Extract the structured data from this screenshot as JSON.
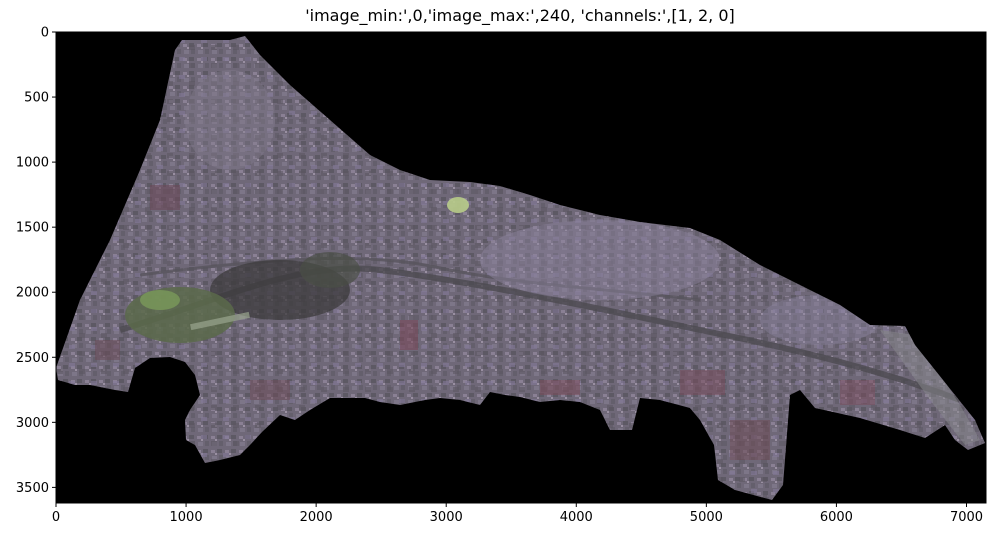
{
  "figure": {
    "title": "'image_min:',0,'image_max:',240, 'channels:',[1, 2, 0]"
  },
  "image": {
    "description_name": "satellite-image",
    "background_color": "#000000",
    "land_palette": [
      "#6f6878",
      "#7a7286",
      "#5c5a60",
      "#8a7f92",
      "#54504f"
    ]
  },
  "axes": {
    "x_ticks": [
      {
        "value": 0,
        "label": "0"
      },
      {
        "value": 1000,
        "label": "1000"
      },
      {
        "value": 2000,
        "label": "2000"
      },
      {
        "value": 3000,
        "label": "3000"
      },
      {
        "value": 4000,
        "label": "4000"
      },
      {
        "value": 5000,
        "label": "5000"
      },
      {
        "value": 6000,
        "label": "6000"
      },
      {
        "value": 7000,
        "label": "7000"
      }
    ],
    "y_ticks": [
      {
        "value": 0,
        "label": "0"
      },
      {
        "value": 500,
        "label": "500"
      },
      {
        "value": 1000,
        "label": "1000"
      },
      {
        "value": 1500,
        "label": "1500"
      },
      {
        "value": 2000,
        "label": "2000"
      },
      {
        "value": 2500,
        "label": "2500"
      },
      {
        "value": 3000,
        "label": "3000"
      },
      {
        "value": 3500,
        "label": "3500"
      }
    ],
    "x_range": [
      0,
      7150
    ],
    "y_range": [
      0,
      3620
    ]
  }
}
